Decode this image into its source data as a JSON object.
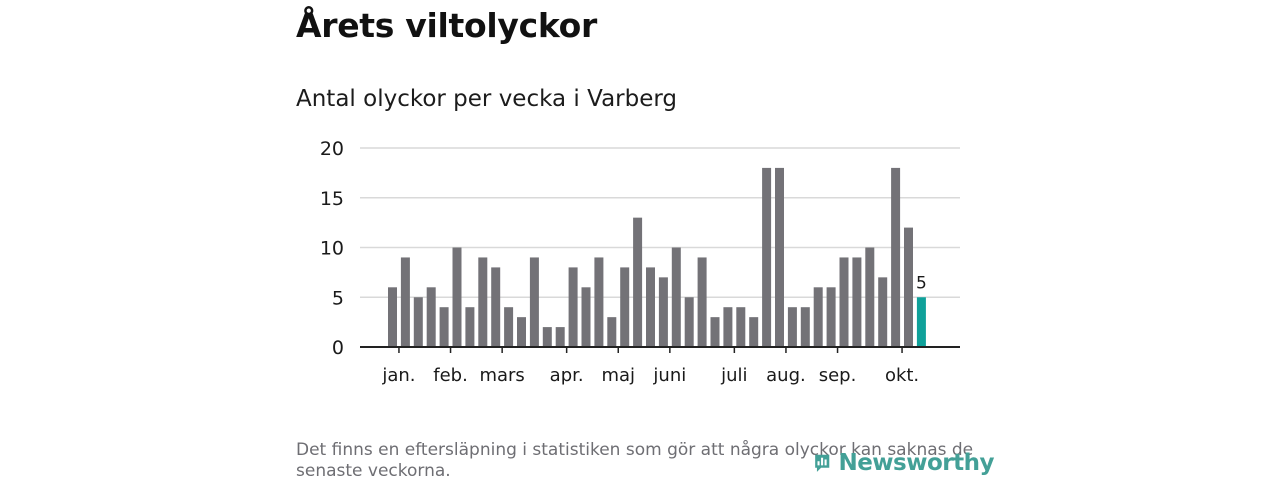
{
  "header": {
    "title": "Årets viltolyckor",
    "subtitle": "Antal olyckor per vecka i Varberg"
  },
  "footnote": "Det finns en eftersläpning i statistiken som gör att några olyckor kan saknas de senaste veckorna.",
  "brand": {
    "name": "Newsworthy"
  },
  "colors": {
    "bar": "#737277",
    "highlight": "#0fa19a",
    "grid": "#d9d9d9",
    "axis": "#222222",
    "brand": "#43a097"
  },
  "chart_data": {
    "type": "bar",
    "title": "Antal olyckor per vecka i Varberg",
    "xlabel": "",
    "ylabel": "",
    "ylim": [
      0,
      20
    ],
    "yticks": [
      0,
      5,
      10,
      15,
      20
    ],
    "grid": true,
    "values": [
      6,
      9,
      5,
      6,
      4,
      10,
      4,
      9,
      8,
      4,
      3,
      9,
      2,
      2,
      8,
      6,
      9,
      3,
      8,
      13,
      8,
      7,
      10,
      5,
      9,
      3,
      4,
      4,
      3,
      18,
      18,
      4,
      4,
      6,
      6,
      9,
      9,
      10,
      7,
      18,
      12,
      5
    ],
    "highlight_index": 41,
    "highlight_label": "5",
    "month_ticks": [
      {
        "label": "jan.",
        "index": 0.5
      },
      {
        "label": "feb.",
        "index": 4.5
      },
      {
        "label": "mars",
        "index": 8.5
      },
      {
        "label": "apr.",
        "index": 13.5
      },
      {
        "label": "maj",
        "index": 17.5
      },
      {
        "label": "juni",
        "index": 21.5
      },
      {
        "label": "juli",
        "index": 26.5
      },
      {
        "label": "aug.",
        "index": 30.5
      },
      {
        "label": "sep.",
        "index": 34.5
      },
      {
        "label": "okt.",
        "index": 39.5
      }
    ]
  }
}
